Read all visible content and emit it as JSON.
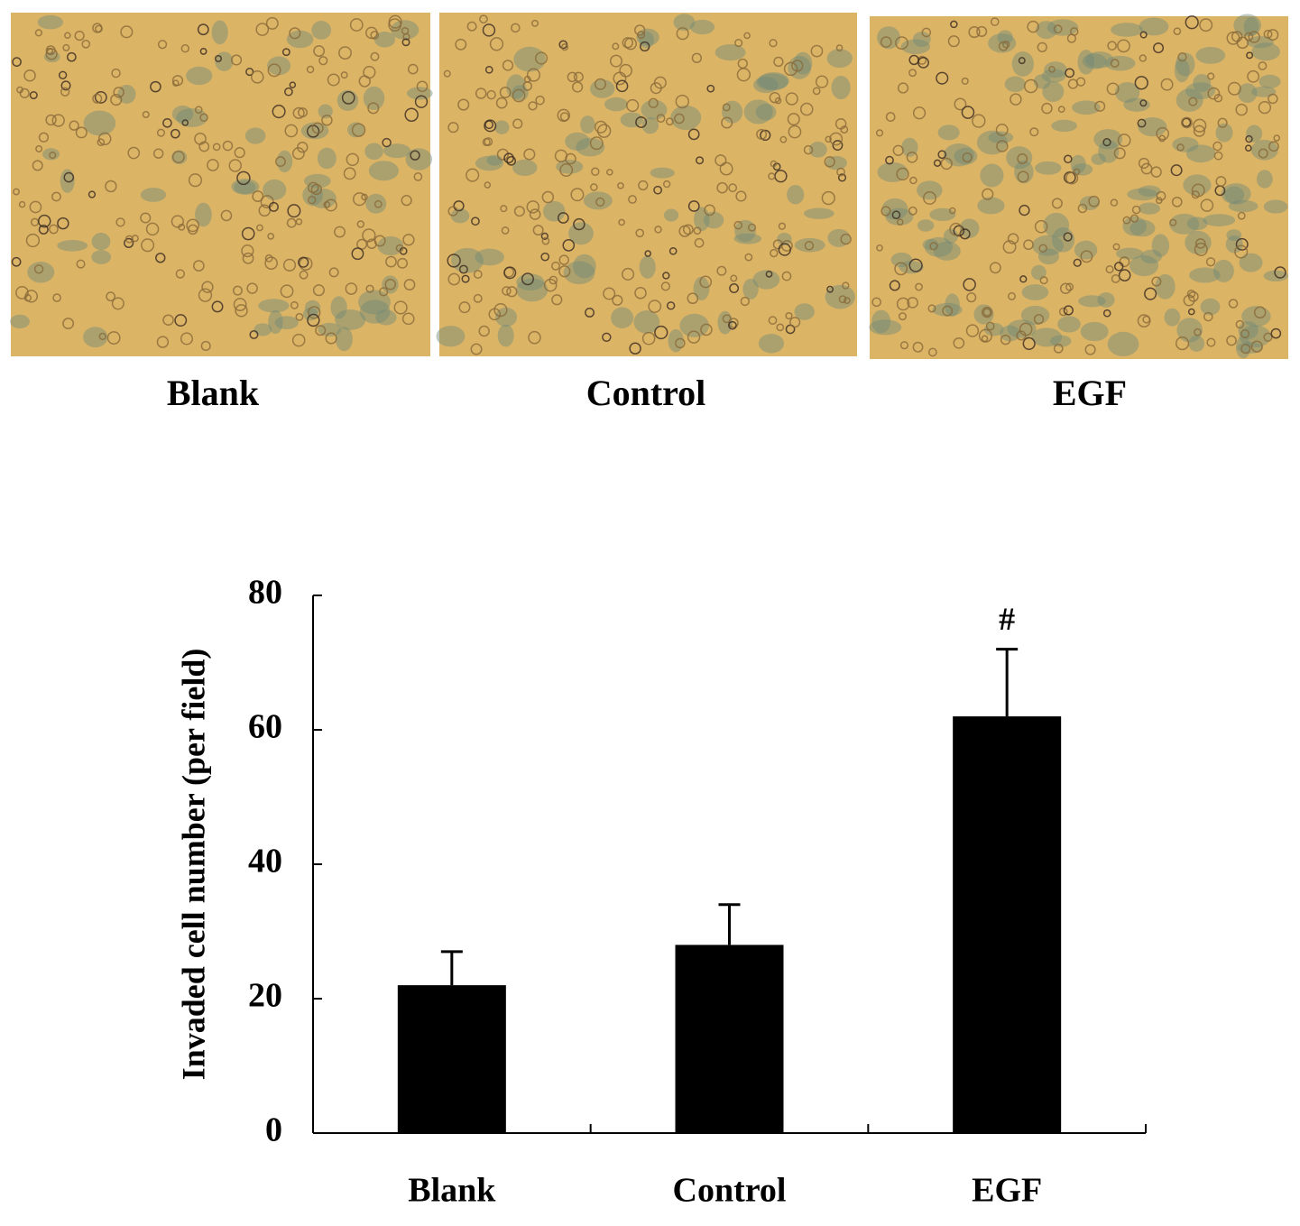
{
  "panels": {
    "labels": [
      "Blank",
      "Control",
      "EGF"
    ]
  },
  "chart_data": {
    "type": "bar",
    "y_label": "Invaded cell number (per field)",
    "categories": [
      "Blank",
      "Control",
      "EGF"
    ],
    "values": [
      22,
      28,
      62
    ],
    "errors": [
      5,
      6,
      10
    ],
    "bar_annotations": [
      null,
      null,
      "#"
    ],
    "color": "#000000",
    "ylim": [
      0,
      80
    ],
    "yticks": [
      0,
      20,
      40,
      60,
      80
    ],
    "grid": false
  }
}
